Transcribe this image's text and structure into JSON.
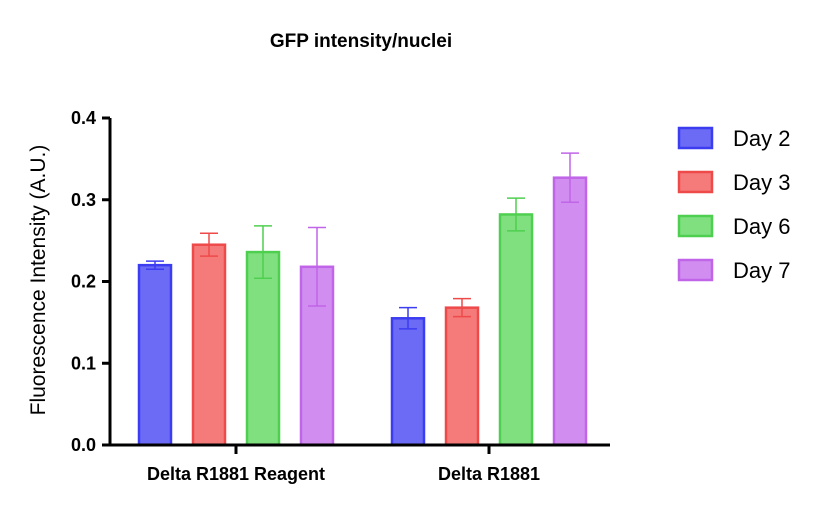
{
  "chart_data": {
    "type": "bar",
    "title": "GFP intensity/nuclei",
    "xlabel": "",
    "ylabel": "Fluorescence Intensity (A.U.)",
    "ylim": [
      0,
      0.4
    ],
    "yticks": [
      "0.0",
      "0.1",
      "0.2",
      "0.3",
      "0.4"
    ],
    "categories": [
      "Delta R1881 Reagent",
      "Delta R1881"
    ],
    "series": [
      {
        "name": "Day 2",
        "values": [
          0.22,
          0.155
        ],
        "errors": [
          0.005,
          0.013
        ],
        "color": "#6b6bf5",
        "edge": "#3c3cf0"
      },
      {
        "name": "Day 3",
        "values": [
          0.245,
          0.168
        ],
        "errors": [
          0.014,
          0.011
        ],
        "color": "#f57a7a",
        "edge": "#ee4a4a"
      },
      {
        "name": "Day 6",
        "values": [
          0.236,
          0.282
        ],
        "errors": [
          0.032,
          0.02
        ],
        "color": "#80e080",
        "edge": "#4fcf4f"
      },
      {
        "name": "Day 7",
        "values": [
          0.218,
          0.327
        ],
        "errors": [
          0.048,
          0.03
        ],
        "color": "#d18ef0",
        "edge": "#c064e8"
      }
    ],
    "legend": "right",
    "grid": false
  }
}
